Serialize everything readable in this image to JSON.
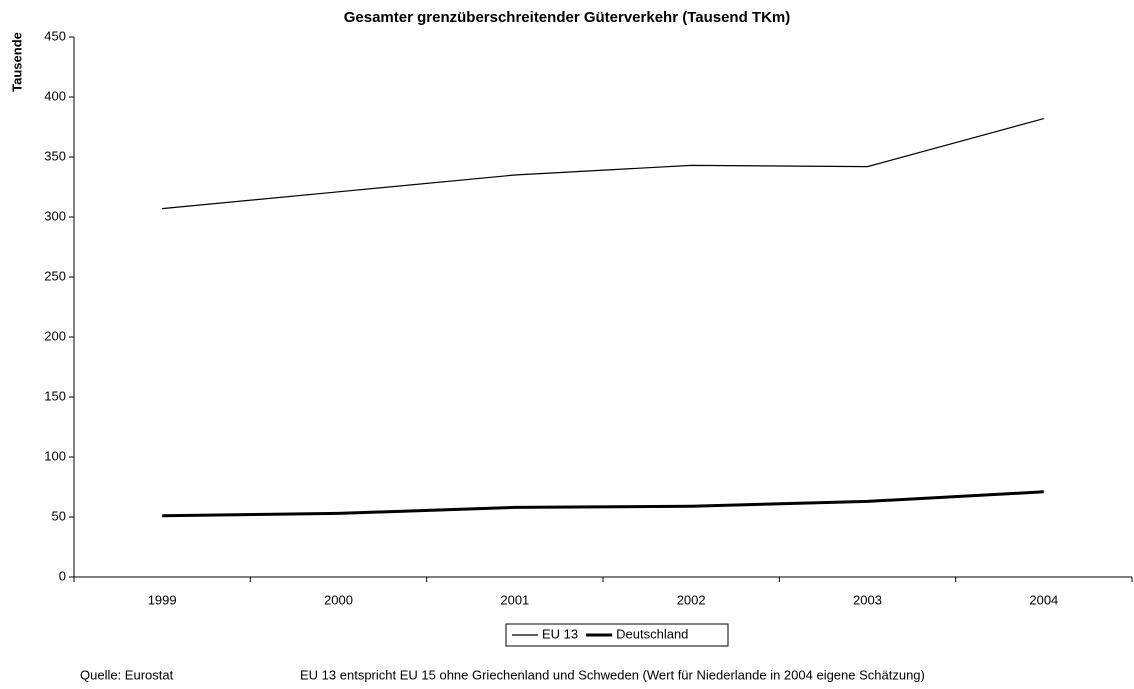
{
  "chart_data": {
    "type": "line",
    "title": "Gesamter grenzüberschreitender Güterverkehr (Tausend TKm)",
    "y_label": "Tausende",
    "categories": [
      "1999",
      "2000",
      "2001",
      "2002",
      "2003",
      "2004"
    ],
    "series": [
      {
        "name": "EU 13",
        "color": "#000000",
        "values": [
          307,
          321,
          335,
          343,
          342,
          382
        ]
      },
      {
        "name": "Deutschland",
        "color": "#000000",
        "values": [
          51,
          53,
          58,
          59,
          63,
          71
        ]
      }
    ],
    "ylim": [
      0,
      450
    ],
    "yticks": [
      0,
      50,
      100,
      150,
      200,
      250,
      300,
      350,
      400,
      450
    ],
    "grid": false,
    "legend": "bottom",
    "source": "Quelle: Eurostat",
    "note": "EU 13 entspricht EU 15 ohne Griechenland und Schweden (Wert für Niederlande in 2004 eigene Schätzung)"
  }
}
